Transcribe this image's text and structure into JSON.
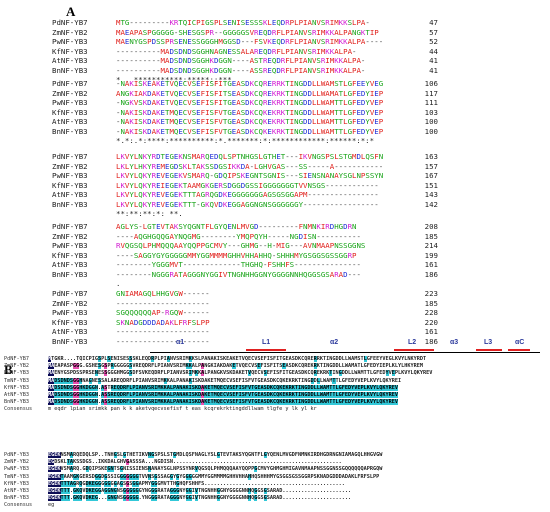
{
  "panel_a": {
    "label": "A",
    "blocks": [
      {
        "rows": [
          {
            "name": "PdNF-YB7",
            "seq": "MTG---------KRTQICPIGSPLSENISESSSKLEQDRPLPIANVSRIMKKSLPA-",
            "pos": "47"
          },
          {
            "name": "ZmNF-YB2",
            "seq": "MAEAPASPGGGGG-SHESGSPR--GGGGGSVREQDRFLPIANVSRIMKKALPANGKTIP",
            "pos": "57"
          },
          {
            "name": "PwNF-YB3",
            "seq": "MAENYGSPDSSPRSENESSGGGHMGGSD---FSVKEQDRFLPIANVSRIMKKALPA----",
            "pos": "52"
          },
          {
            "name": "KfNF-YB3",
            "seq": "----------MADSDNDSGGHNAGNESSALAREQDRFLPIANVSRIMKKALPA-",
            "pos": "44"
          },
          {
            "name": "AtNF-YB3",
            "seq": "----------MADSDNDSGGHKDGGN----ASTREQDRFLPIANVSRIMKKALPA-",
            "pos": "41"
          },
          {
            "name": "BnNF-YB3",
            "seq": "----------MADSDNDSGGHKDGGN----ASSREQDRFLPIANVSRIMKKALPA-",
            "pos": "41"
          }
        ],
        "consensus": "                *  .          ***********:*****::***"
      },
      {
        "rows": [
          {
            "name": "PdNF-YB7",
            "seq": "-NAKISKEAKETVQECVSEFISFITGEASDKCQRERRKTINGDDLLWAMSTLGFEEYVEG",
            "pos": "106"
          },
          {
            "name": "ZmNF-YB2",
            "seq": "ANGKIAKDAKETVQECVSEFISFITSEASDKCQREKRKTINGDDLLWAMATLGFEDYIEP",
            "pos": "117"
          },
          {
            "name": "PwNF-YB3",
            "seq": "-NGKVSKDAKETVQECVSEFISFITGEASDKCQREKRKTINGDDLLWAMTTLGFEDYVEP",
            "pos": "111"
          },
          {
            "name": "KfNF-YB3",
            "seq": "-NAKISKDAKETMQECVSEFISFVTGEASDKCQKEKRKTINGDDLLWAMTTLGFEDYVEP",
            "pos": "103"
          },
          {
            "name": "AtNF-YB3",
            "seq": "-NAKISKDAKETMQECVSEFISFVTGEASDKCQKEKRKTINGDDLLWAMTTLGFEDYVEP",
            "pos": "100"
          },
          {
            "name": "BnNF-YB3",
            "seq": "-NAKISKDAKETMQECVSEFISFVTGEASDKCQKEKRKTINGDDLLWAMTTLGFEDYVEP",
            "pos": "100"
          }
        ],
        "consensus": " *.*:.*:****:**********:*.*******:*:************:******:*:*"
      },
      {
        "rows": [
          {
            "name": "PdNF-YB7",
            "seq": "LKVYLNKYRDTEGEKNSMARQEDQLSPTNHGSLGTHET---IKVNGSPSLSTGMDLQSFN",
            "pos": "163"
          },
          {
            "name": "ZmNF-YB2",
            "seq": "LKLYLHKYREMEGDSKLTAKSSDGSIKKDA-LGHVGAS---SS-----A-----------",
            "pos": "157"
          },
          {
            "name": "PwNF-YB3",
            "seq": "LKVYLQKYREVEGEKVSMARQ-GDQIPSKEGNTSGNIS---SIENSNANAYSGLNPSSYN",
            "pos": "167"
          },
          {
            "name": "KfNF-YB3",
            "seq": "LKVYLQKYREIEGEKTAAMGKGERSDGGDGSSIGGGGGGGTVVNSGS------------",
            "pos": "151"
          },
          {
            "name": "AtNF-YB3",
            "seq": "LKVYLQKYREVEGEKTTTAGRQGDKEGGGGGGGAGSGSGGAPM----------------",
            "pos": "143"
          },
          {
            "name": "BnNF-YB3",
            "seq": "LKVYLQKYREVEGEKTTT-GKQVDKEGGAGGNGNSGGGGGGY-----------------",
            "pos": "142"
          }
        ],
        "consensus": "**:**:**:*: **."
      },
      {
        "rows": [
          {
            "name": "PdNF-YB7",
            "seq": "AGLYS-LGTEVTAKSYQGNTFLGYQENLMVGD---------FNMNKIRDHGDRN",
            "pos": "208"
          },
          {
            "name": "ZmNF-YB2",
            "seq": "----AQGHGQQGAYNQGMG--------YMQPQYH-----NGDISN----------",
            "pos": "185"
          },
          {
            "name": "PwNF-YB3",
            "seq": "RVQGSQLPHMQQQAAYQQPPGCMVY---GHMG--H-MIG---AVNMAAPNSSGGNS",
            "pos": "214"
          },
          {
            "name": "KfNF-YB3",
            "seq": "----SAGGYGYGGGGGMMYGGMMMMGHHVHHAHHQ-SHHHMYGSGGSGSSGGRP",
            "pos": "199"
          },
          {
            "name": "AtNF-YB3",
            "seq": "--------YGGGMVT-------------THGHQ-FSHHFS---------------",
            "pos": "161"
          },
          {
            "name": "BnNF-YB3",
            "seq": "--------NGGGRATAGGGNYGGIVTNGNHHGGNYGGGGNNHQGGSGSARAD---",
            "pos": "186"
          }
        ],
        "consensus": "                                              ."
      },
      {
        "rows": [
          {
            "name": "PdNF-YB7",
            "seq": "GNIAMAGQLHHGVGW------",
            "pos": "223"
          },
          {
            "name": "ZmNF-YB2",
            "seq": "---------------------",
            "pos": "185"
          },
          {
            "name": "PwNF-YB3",
            "seq": "SGQQQQQQAP-RGQW------",
            "pos": "228"
          },
          {
            "name": "KfNF-YB3",
            "seq": "SKNADGDDDADAKLFRFSLPP",
            "pos": "220"
          },
          {
            "name": "AtNF-YB3",
            "seq": "---------------------",
            "pos": "161"
          },
          {
            "name": "BnNF-YB3",
            "seq": "---------------------",
            "pos": "186"
          }
        ],
        "consensus": ""
      }
    ]
  },
  "panel_b": {
    "label": "B",
    "secondary_structure": [
      "α1",
      "L1",
      "α2",
      "L2",
      "α3",
      "L3",
      "αC"
    ],
    "block1": {
      "rows": [
        {
          "name": "PdNF-YB7",
          "seq": "MTGKR....TQICPIGSPLSENISESSSKLEQDRPLPIANVSRIMKKSLPANAKISKEAKETVQECVSEFISFITGEASDKCQRERRKTINGDDLLWAMSTLGFEEYVEGLKVYLNKYRDT"
        },
        {
          "name": "ZmNF-YB2",
          "seq": "MAEAPASPGGG.GSHESGSPRGGGGGSVREQDRFLPIANVSRIMKKALPANGKIAKDAKETVQECVSEFISFITSEASDKCQREKRKTINGDDLLWAMATLGFEDYIEPLKLYLHKYREM"
        },
        {
          "name": "PwNF-YB3",
          "seq": "MAENYGSPDSSPRSENESSGGGHMGGSDFSVKEQDRFLPIANVSRIMKKALPANGKVSKDAKETVQECVSEFISFITGEASDKCQREKRKTINGDDLLWAMTTLGFEDYVEPLKVYLQKYREV"
        },
        {
          "name": "TmNF-YB3",
          "seq": "MADSDNDSGGHNAGNESSALAREQDRFLPIANVSRIMKKALPANAKISKDAKETMQECVSEFISFVTGEASDKCQKEKRKTINGDDLLWAMTTLGFEDYVEPLKVYLQKYREI"
        },
        {
          "name": "KfNF-YB3",
          "seq": "MADSDNDSGGHKDGGN.ASTREQDRFLPIANVSRIMKKALPANAKISKDAKETMQECVSEFISFVTGEASDKCQKEKRKTINGDDLLWAMTTLGFEDYVEPLKVYLQKYREV"
        },
        {
          "name": "AtNF-YB3",
          "seq": "MADSDNDSGGHKDGGN.ASSREQDRFLPIANVSRIMKKALPANAKISKDAKETMQECVSEFISFVTGEASDKCQKEKRKTINGDDLLWAMTTLGFEDYVEPLKVYLQKYREV"
        },
        {
          "name": "BnNF-YB3",
          "seq": "MADSDNDSGGHKDGGN.ASSREQDRFLPIANVSRIMKKALPANAKISKDAKETMQECVSEFISFVTGEASDKCQKEKRKTINGDDLLWAMTTLGFEDYVEPLKVYLQKYREV"
        }
      ],
      "consensus_label": "Consensus",
      "consensus": "m                     eqdr lpian srimkk pan k  k aketvqecvsefisf t eas kcqrekrktingddllwam tlgfe y   lk yl kr"
    },
    "block2": {
      "rows": [
        {
          "name": "PdNF-YB3",
          "seq": "EGEKNSMARQEDQLSP..TNHGSLGTHETIKVNGSPSLSTGMDLQSFNAGLYSLGTEVTAKSYQGNTFLGYQENLMVGDFNMNKIRDHGDRNGNIAMAGQLHHGVGW"
        },
        {
          "name": "ZmNF-YB2",
          "seq": "EGDSKLTAKSSDGS..IKKDALGHVGASSSA...NGDISN......................................................"
        },
        {
          "name": "PwNF-YB3",
          "seq": "EGEKVSMARQ.GDQIPSKEGNTSGNISSIENSNANAYSGLNPSSYNRVQGSQLPHMQQQAAYQQPPGCMVYGHMGHMIGAVNMAAPNSSGGNSSGQQQQQQAPRGQW"
        },
        {
          "name": "TmNF-YB3",
          "seq": "EGEKTAAMGKGERSDGGDGSSIGGGGGGGTVVNSGSSAGGYGYGGGGGMMYGGMMMMGHHVHHAHHQSHHHMYGSGGSGSSGGRPSKNADGDDDADAKLFRFSLPP"
        },
        {
          "name": "KfNF-YB3",
          "seq": "EGEKTTTAGRQGDKEGGGGGGGAGSGSGGAPMYGGGMVTTHGHQFSHHFS............................................."
        },
        {
          "name": "AtNF-YB3",
          "seq": "EGEKTTT.GKQVDKEGGAGGNGNSGGGGGGYNGGGRATAGGGNYGGIVTNGNHHGGNYGGGGNNHQGGSGSARAD......................"
        },
        {
          "name": "BnNF-YB3",
          "seq": "EGEKTTT.GKQVDKEG...GNGNSGGGGG.YNGGGRATAGGGNYGGIVTNGNHHGGNYGGGGNNHQGGSGSARAD......................"
        }
      ],
      "consensus_label": "Consensus",
      "consensus": "eg"
    }
  },
  "colors": {
    "hydrophobic": "#e0201b",
    "acidic": "#1f2fd6",
    "basic": "#d21ad2",
    "polar": "#17a317",
    "other": "#555555",
    "ident_bg": "#0b0b55",
    "ident_fg": "#ffffff",
    "sim_bg": "#e84fb0",
    "weak_bg": "#32c8d8",
    "ss_label": "#2c3a9c",
    "ss_arrow": "#e02020"
  }
}
